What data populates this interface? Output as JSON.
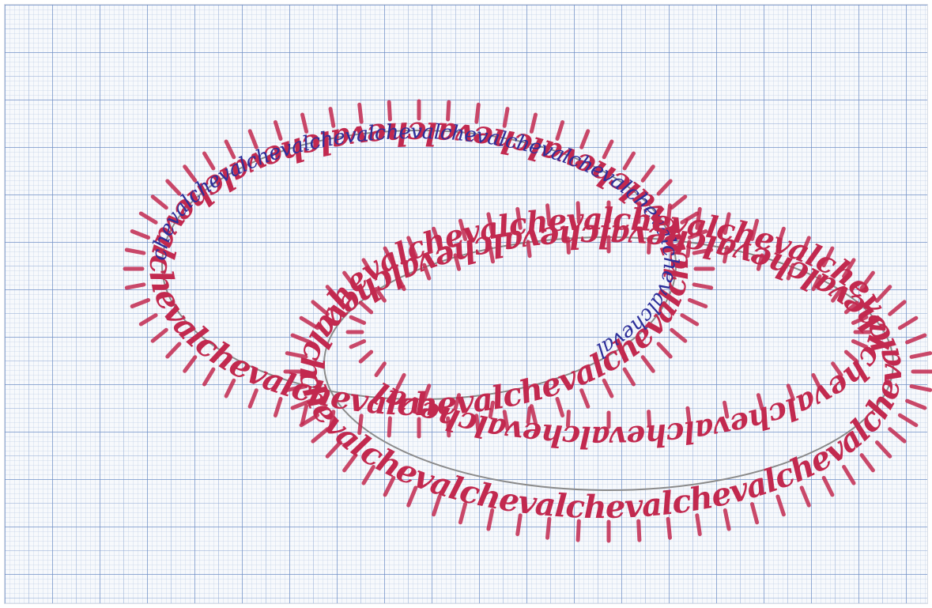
{
  "artwork": {
    "word": "cheval",
    "ink_colors": {
      "red": "#c2294f",
      "blue": "#2d2f9a",
      "pencil": "#8a8a8a",
      "grid": "#6c8cc4"
    },
    "rings": [
      {
        "ink": "red",
        "repeats": 14,
        "text": "chevalchevalchevalchevalchevalchevalchevalchevalchevalchevalchevalchevalchevalcheval"
      },
      {
        "ink": "blue",
        "repeats": 11,
        "text": "chevalchevalchevalchevalchevalchevalchevalchevalchevalchevalcheval"
      },
      {
        "ink": "red",
        "repeats": 15,
        "text": "chevalchevalchevalchevalchevalchevalchevalchevalchevalchevalchevalchevalchevalchevalcheval"
      },
      {
        "ink": "red",
        "repeats": 11,
        "text": "chevalchevalchevalchevalchevalchevalchevalchevalchevalchevalcheval"
      }
    ]
  }
}
